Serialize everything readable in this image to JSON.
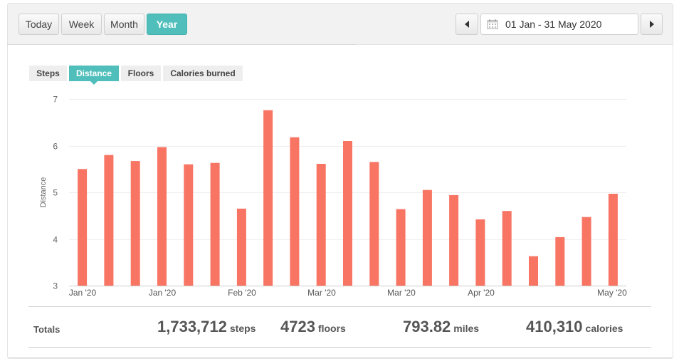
{
  "period_buttons": [
    "Today",
    "Week",
    "Month",
    "Year"
  ],
  "active_period": "Year",
  "date_range": "01 Jan - 31 May 2020",
  "metric_tabs": [
    "Steps",
    "Distance",
    "Floors",
    "Calories burned"
  ],
  "active_metric": "Distance",
  "totals": {
    "label": "Totals",
    "steps_value": "1,733,712",
    "steps_unit": "steps",
    "floors_value": "4723",
    "floors_unit": "floors",
    "miles_value": "793.82",
    "miles_unit": "miles",
    "calories_value": "410,310",
    "calories_unit": "calories"
  },
  "colors": {
    "accent": "#50bfbc",
    "bar": "#f87463"
  },
  "icons": {
    "prev": "caret-left-icon",
    "next": "caret-right-icon",
    "calendar": "calendar-icon"
  },
  "chart_data": {
    "type": "bar",
    "ylabel": "Distance",
    "ylim": [
      3,
      7
    ],
    "yticks": [
      3,
      4,
      5,
      6,
      7
    ],
    "grid": true,
    "x_tick_labels": [
      "Jan '20",
      "Jan '20",
      "Feb '20",
      "Mar '20",
      "Mar '20",
      "Apr '20",
      "May '20"
    ],
    "values": [
      5.5,
      5.8,
      5.67,
      5.97,
      5.6,
      5.63,
      4.65,
      6.76,
      6.18,
      5.61,
      6.1,
      5.65,
      4.64,
      5.05,
      4.94,
      4.42,
      4.6,
      3.63,
      4.04,
      4.47,
      4.97
    ]
  }
}
